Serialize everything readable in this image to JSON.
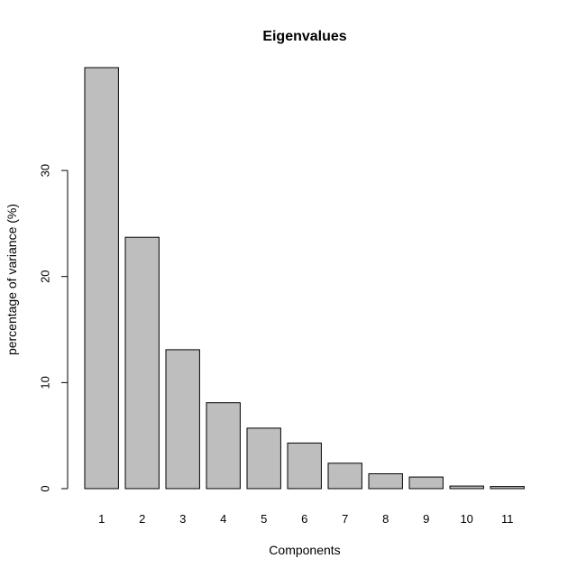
{
  "chart_data": {
    "type": "bar",
    "title": "Eigenvalues",
    "xlabel": "Components",
    "ylabel": "percentage of variance (%)",
    "categories": [
      "1",
      "2",
      "3",
      "4",
      "5",
      "6",
      "7",
      "8",
      "9",
      "10",
      "11"
    ],
    "values": [
      39.7,
      23.7,
      13.1,
      8.1,
      5.7,
      4.3,
      2.4,
      1.4,
      1.1,
      0.25,
      0.2
    ],
    "yticks": [
      0,
      10,
      20,
      30
    ],
    "ylim": [
      0,
      39.7
    ],
    "bar_color": "#bebebe",
    "border_color": "#000000",
    "grid": false,
    "legend": false
  }
}
